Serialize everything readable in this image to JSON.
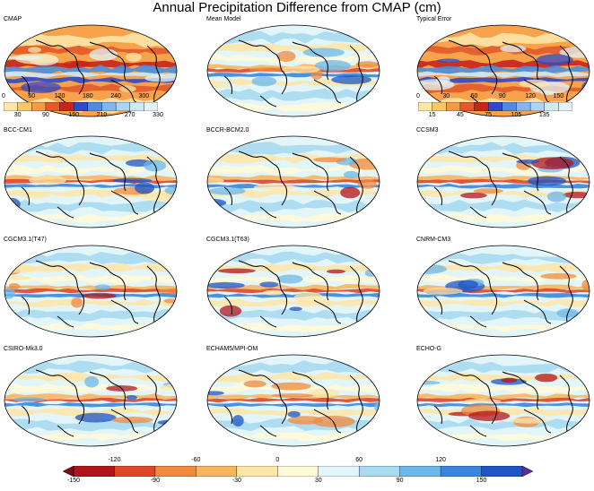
{
  "title": "Annual Precipitation Difference from CMAP (cm)",
  "panels": [
    {
      "label": "CMAP",
      "scheme": "abs"
    },
    {
      "label": "Mean Model",
      "scheme": "diff"
    },
    {
      "label": "Typical Error",
      "scheme": "err"
    },
    {
      "label": "BCC-CM1",
      "scheme": "diff"
    },
    {
      "label": "BCCR-BCM2.0",
      "scheme": "diff"
    },
    {
      "label": "CCSM3",
      "scheme": "diff"
    },
    {
      "label": "CGCM3.1(T47)",
      "scheme": "diff"
    },
    {
      "label": "CGCM3.1(T63)",
      "scheme": "diff"
    },
    {
      "label": "CNRM-CM3",
      "scheme": "diff"
    },
    {
      "label": "CSIRO-Mk3.0",
      "scheme": "diff"
    },
    {
      "label": "ECHAM5/MPI-OM",
      "scheme": "diff"
    },
    {
      "label": "ECHO-G",
      "scheme": "diff"
    }
  ],
  "colorbars": {
    "cmap": {
      "top_labels": [
        "0",
        "60",
        "120",
        "180",
        "240",
        "300"
      ],
      "bottom_labels": [
        "30",
        "90",
        "150",
        "210",
        "270",
        "330"
      ],
      "colors": [
        "#fde6a8",
        "#f9c66b",
        "#f59a45",
        "#e25a2a",
        "#c8241c",
        "#2f49c7",
        "#4b8ee0",
        "#7fb7ee",
        "#a9d6f3",
        "#cdeaf7",
        "#e2f4f9"
      ]
    },
    "error": {
      "top_labels": [
        "0",
        "30",
        "60",
        "90",
        "120",
        "150"
      ],
      "bottom_labels": [
        "15",
        "45",
        "75",
        "105",
        "135"
      ],
      "colors": [
        "#fde6a8",
        "#f9c66b",
        "#f59a45",
        "#e25a2a",
        "#c8241c",
        "#2f49c7",
        "#4b8ee0",
        "#7fb7ee",
        "#a9d6f3",
        "#cdeaf7",
        "#e2f4f9"
      ]
    },
    "difference": {
      "top_labels": [
        "-120",
        "-60",
        "0",
        "60",
        "120"
      ],
      "bottom_labels": [
        "-150",
        "-90",
        "-30",
        "30",
        "90",
        "150"
      ],
      "colors": [
        "#b1151c",
        "#e0462a",
        "#f08a3c",
        "#f7b65e",
        "#fde6a8",
        "#fff9d8",
        "#e2f5f8",
        "#a9daf0",
        "#6cb8ea",
        "#3a86de",
        "#1e54c6"
      ]
    }
  }
}
